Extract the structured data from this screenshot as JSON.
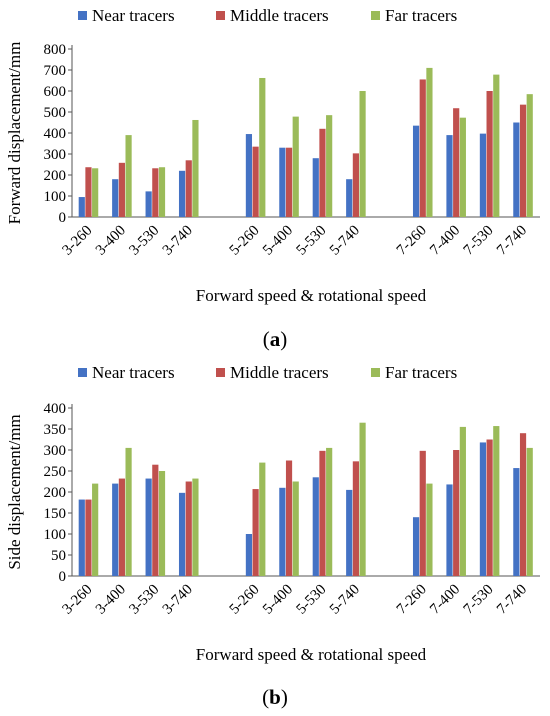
{
  "chart_data": [
    {
      "type": "bar",
      "panel_label": "a",
      "categories": [
        "3-260",
        "3-400",
        "3-530",
        "3-740",
        "5-260",
        "5-400",
        "5-530",
        "5-740",
        "7-260",
        "7-400",
        "7-530",
        "7-740"
      ],
      "groups": [
        [
          "3-260",
          "3-400",
          "3-530",
          "3-740"
        ],
        [
          "5-260",
          "5-400",
          "5-530",
          "5-740"
        ],
        [
          "7-260",
          "7-400",
          "7-530",
          "7-740"
        ]
      ],
      "series": [
        {
          "name": "Near tracers",
          "color": "#4472C4",
          "values": [
            95,
            180,
            122,
            220,
            395,
            330,
            280,
            180,
            435,
            390,
            397,
            450
          ]
        },
        {
          "name": "Middle tracers",
          "color": "#C0504D",
          "values": [
            237,
            258,
            232,
            270,
            335,
            330,
            420,
            303,
            655,
            518,
            600,
            535
          ]
        },
        {
          "name": "Far tracers",
          "color": "#9BBB59",
          "values": [
            232,
            390,
            237,
            462,
            662,
            478,
            485,
            600,
            710,
            473,
            678,
            585
          ]
        }
      ],
      "xlabel": "Forward speed & rotational speed",
      "ylabel": "Forward displacement/mm",
      "ylim": [
        0,
        800
      ],
      "yticks": [
        0,
        100,
        200,
        300,
        400,
        500,
        600,
        700,
        800
      ],
      "grid": false,
      "legend": "top"
    },
    {
      "type": "bar",
      "panel_label": "b",
      "categories": [
        "3-260",
        "3-400",
        "3-530",
        "3-740",
        "5-260",
        "5-400",
        "5-530",
        "5-740",
        "7-260",
        "7-400",
        "7-530",
        "7-740"
      ],
      "groups": [
        [
          "3-260",
          "3-400",
          "3-530",
          "3-740"
        ],
        [
          "5-260",
          "5-400",
          "5-530",
          "5-740"
        ],
        [
          "7-260",
          "7-400",
          "7-530",
          "7-740"
        ]
      ],
      "series": [
        {
          "name": "Near tracers",
          "color": "#4472C4",
          "values": [
            182,
            220,
            232,
            198,
            100,
            210,
            235,
            205,
            140,
            218,
            318,
            257
          ]
        },
        {
          "name": "Middle tracers",
          "color": "#C0504D",
          "values": [
            182,
            232,
            265,
            225,
            207,
            275,
            298,
            273,
            298,
            300,
            325,
            340
          ]
        },
        {
          "name": "Far tracers",
          "color": "#9BBB59",
          "values": [
            220,
            305,
            250,
            232,
            270,
            225,
            305,
            365,
            220,
            355,
            357,
            305
          ]
        }
      ],
      "xlabel": "Forward speed & rotational speed",
      "ylabel": "Side displacement/mm",
      "ylim": [
        0,
        400
      ],
      "yticks": [
        0,
        50,
        100,
        150,
        200,
        250,
        300,
        350,
        400
      ],
      "grid": false,
      "legend": "top"
    }
  ]
}
